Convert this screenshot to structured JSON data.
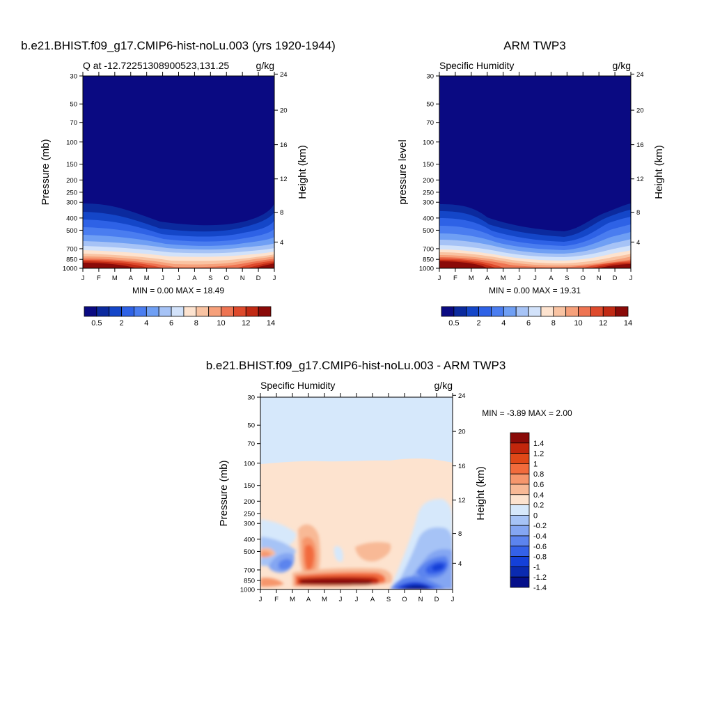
{
  "figure": {
    "panels": [
      {
        "title": "b.e21.BHIST.f09_g17.CMIP6-hist-noLu.003 (yrs 1920-1944)",
        "left_label": "Q at -12.72251308900523,131.25",
        "right_label": "g/kg",
        "ylabel_left": "Pressure (mb)",
        "ylabel_right": "Height (km)",
        "stats": "MIN =   0.00 MAX =  18.49"
      },
      {
        "title": "ARM TWP3",
        "left_label": "Specific Humidity",
        "right_label": "g/kg",
        "ylabel_left": "pressure level",
        "ylabel_right": "Height (km)",
        "stats": "MIN =   0.00 MAX =  19.31"
      },
      {
        "title": "b.e21.BHIST.f09_g17.CMIP6-hist-noLu.003 - ARM TWP3",
        "left_label": "Specific Humidity",
        "right_label": "g/kg",
        "ylabel_left": "Pressure (mb)",
        "ylabel_right": "Height (km)",
        "stats": "MIN =  -3.89 MAX =   2.00"
      }
    ]
  },
  "chart_data": [
    {
      "type": "heatmap",
      "title": "b.e21.BHIST.f09_g17.CMIP6-hist-noLu.003 (yrs 1920-1944)",
      "variable": "Q",
      "units": "g/kg",
      "x_ticks": [
        "J",
        "F",
        "M",
        "A",
        "M",
        "J",
        "J",
        "A",
        "S",
        "O",
        "N",
        "D",
        "J"
      ],
      "y_ticks_pressure": [
        30,
        50,
        70,
        100,
        150,
        200,
        250,
        300,
        400,
        500,
        700,
        850,
        1000
      ],
      "y_ticks_height": [
        24,
        20,
        16,
        12,
        8,
        4
      ],
      "ylim": [
        30,
        1000
      ],
      "log_scale_y": true,
      "min": 0.0,
      "max": 18.49,
      "contour_levels": [
        0.5,
        1,
        2,
        3,
        4,
        5,
        6,
        7,
        8,
        9,
        10,
        11,
        12,
        13,
        14
      ],
      "colorbar_labels": [
        "0.5",
        "2",
        "4",
        "6",
        "8",
        "10",
        "12",
        "14"
      ],
      "moist_layer_top_hPa": [
        300,
        300,
        320,
        380,
        420,
        430,
        430,
        430,
        430,
        420,
        380,
        340,
        300
      ],
      "surface_max_gkg": [
        18,
        17.5,
        17,
        15,
        12,
        10,
        9.5,
        9.5,
        10,
        11,
        14,
        17,
        18
      ]
    },
    {
      "type": "heatmap",
      "title": "ARM TWP3",
      "variable": "Specific Humidity",
      "units": "g/kg",
      "x_ticks": [
        "J",
        "F",
        "M",
        "A",
        "M",
        "J",
        "J",
        "A",
        "S",
        "O",
        "N",
        "D",
        "J"
      ],
      "y_ticks_pressure": [
        30,
        50,
        70,
        100,
        150,
        200,
        250,
        300,
        400,
        500,
        700,
        850,
        1000
      ],
      "y_ticks_height": [
        24,
        20,
        16,
        12,
        8,
        4
      ],
      "ylim": [
        30,
        1000
      ],
      "log_scale_y": true,
      "min": 0.0,
      "max": 19.31,
      "contour_levels": [
        0.5,
        1,
        2,
        3,
        4,
        5,
        6,
        7,
        8,
        9,
        10,
        11,
        12,
        13,
        14
      ],
      "colorbar_labels": [
        "0.5",
        "2",
        "4",
        "6",
        "8",
        "10",
        "12",
        "14"
      ],
      "moist_layer_top_hPa": [
        300,
        300,
        310,
        400,
        450,
        480,
        500,
        510,
        510,
        480,
        400,
        320,
        300
      ],
      "surface_max_gkg": [
        19,
        18.5,
        18,
        15,
        11,
        9,
        8.5,
        8.5,
        9,
        11,
        15,
        18,
        19
      ]
    },
    {
      "type": "heatmap",
      "title": "b.e21.BHIST.f09_g17.CMIP6-hist-noLu.003 - ARM TWP3",
      "variable": "Specific Humidity",
      "units": "g/kg",
      "x_ticks": [
        "J",
        "F",
        "M",
        "A",
        "M",
        "J",
        "J",
        "A",
        "S",
        "O",
        "N",
        "D",
        "J"
      ],
      "y_ticks_pressure": [
        30,
        50,
        70,
        100,
        150,
        200,
        250,
        300,
        400,
        500,
        700,
        850,
        1000
      ],
      "y_ticks_height": [
        24,
        20,
        16,
        12,
        8,
        4
      ],
      "ylim": [
        30,
        1000
      ],
      "log_scale_y": true,
      "min": -3.89,
      "max": 2.0,
      "contour_levels": [
        -1.4,
        -1.2,
        -1,
        -0.8,
        -0.6,
        -0.4,
        -0.2,
        0,
        0.2,
        0.4,
        0.6,
        0.8,
        1,
        1.2,
        1.4
      ],
      "colorbar_labels": [
        "1.4",
        "1.2",
        "1",
        "0.8",
        "0.6",
        "0.4",
        "0.2",
        "0",
        "-0.2",
        "-0.4",
        "-0.6",
        "-0.8",
        "-1",
        "-1.2",
        "-1.4"
      ],
      "features": [
        {
          "region": "above ~80 hPa",
          "value": -0.1
        },
        {
          "region": "80-250 hPa",
          "value": 0.1
        },
        {
          "region": "Apr, 400-850 hPa",
          "value": 1.5
        },
        {
          "region": "Apr-Aug, 850-1000 hPa",
          "value": 2.0
        },
        {
          "region": "Sep-Oct, 850-1000 hPa",
          "value": -3.0
        },
        {
          "region": "Dec, 500-700 hPa",
          "value": -1.6
        }
      ]
    }
  ],
  "colors": {
    "sequential_palette": [
      "#0a0a82",
      "#0b2a9e",
      "#1446c8",
      "#2e62e6",
      "#4a7df0",
      "#6f9ff4",
      "#a6c3f6",
      "#d2e2fa",
      "#fde3cf",
      "#f9c3a2",
      "#f6a07a",
      "#ee7452",
      "#de4a2c",
      "#c12a14",
      "#8a0a08"
    ],
    "diverging_palette": [
      "#8a0a08",
      "#c2260c",
      "#e04818",
      "#f26b3c",
      "#f6966c",
      "#f8b996",
      "#fde3cf",
      "#d6e8fb",
      "#a6c3f6",
      "#84a6f2",
      "#5c84ee",
      "#3461e8",
      "#1440d8",
      "#0a2ab0",
      "#050f8a"
    ]
  }
}
